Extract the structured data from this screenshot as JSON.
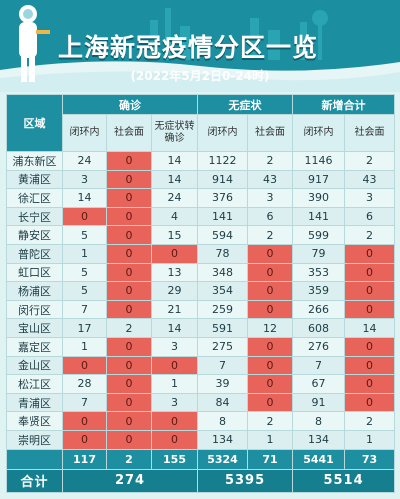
{
  "header": {
    "title": "上海新冠疫情分区一览",
    "subtitle": "(2022年5月2日0-24时)"
  },
  "colors": {
    "header_bg": "#1e8fa1",
    "zero_cell": "#e8645a",
    "row_light": "#eaf7f7",
    "row_dark": "#dbeff0"
  },
  "table": {
    "region_label": "区域",
    "groups": [
      "确诊",
      "无症状",
      "新增合计"
    ],
    "subcols": {
      "confirmed": [
        "闭环内",
        "社会面",
        "无症状转确诊"
      ],
      "asymptomatic": [
        "闭环内",
        "社会面"
      ],
      "total": [
        "闭环内",
        "社会面"
      ]
    },
    "rows": [
      {
        "name": "浦东新区",
        "v": [
          "24",
          "0",
          "14",
          "1122",
          "2",
          "1146",
          "2"
        ]
      },
      {
        "name": "黄浦区",
        "v": [
          "3",
          "0",
          "14",
          "914",
          "43",
          "917",
          "43"
        ]
      },
      {
        "name": "徐汇区",
        "v": [
          "14",
          "0",
          "24",
          "376",
          "3",
          "390",
          "3"
        ]
      },
      {
        "name": "长宁区",
        "v": [
          "0",
          "0",
          "4",
          "141",
          "6",
          "141",
          "6"
        ]
      },
      {
        "name": "静安区",
        "v": [
          "5",
          "0",
          "15",
          "594",
          "2",
          "599",
          "2"
        ]
      },
      {
        "name": "普陀区",
        "v": [
          "1",
          "0",
          "0",
          "78",
          "0",
          "79",
          "0"
        ]
      },
      {
        "name": "虹口区",
        "v": [
          "5",
          "0",
          "13",
          "348",
          "0",
          "353",
          "0"
        ]
      },
      {
        "name": "杨浦区",
        "v": [
          "5",
          "0",
          "29",
          "354",
          "0",
          "359",
          "0"
        ]
      },
      {
        "name": "闵行区",
        "v": [
          "7",
          "0",
          "21",
          "259",
          "0",
          "266",
          "0"
        ]
      },
      {
        "name": "宝山区",
        "v": [
          "17",
          "2",
          "14",
          "591",
          "12",
          "608",
          "14"
        ]
      },
      {
        "name": "嘉定区",
        "v": [
          "1",
          "0",
          "3",
          "275",
          "0",
          "276",
          "0"
        ]
      },
      {
        "name": "金山区",
        "v": [
          "0",
          "0",
          "0",
          "7",
          "0",
          "7",
          "0"
        ]
      },
      {
        "name": "松江区",
        "v": [
          "28",
          "0",
          "1",
          "39",
          "0",
          "67",
          "0"
        ]
      },
      {
        "name": "青浦区",
        "v": [
          "7",
          "0",
          "3",
          "84",
          "0",
          "91",
          "0"
        ]
      },
      {
        "name": "奉贤区",
        "v": [
          "0",
          "0",
          "0",
          "8",
          "2",
          "8",
          "2"
        ]
      },
      {
        "name": "崇明区",
        "v": [
          "0",
          "0",
          "0",
          "134",
          "1",
          "134",
          "1"
        ]
      }
    ],
    "subtotals": [
      "117",
      "2",
      "155",
      "5324",
      "71",
      "5441",
      "73"
    ],
    "total_label": "合计",
    "totals": [
      "274",
      "5395",
      "5514"
    ]
  }
}
